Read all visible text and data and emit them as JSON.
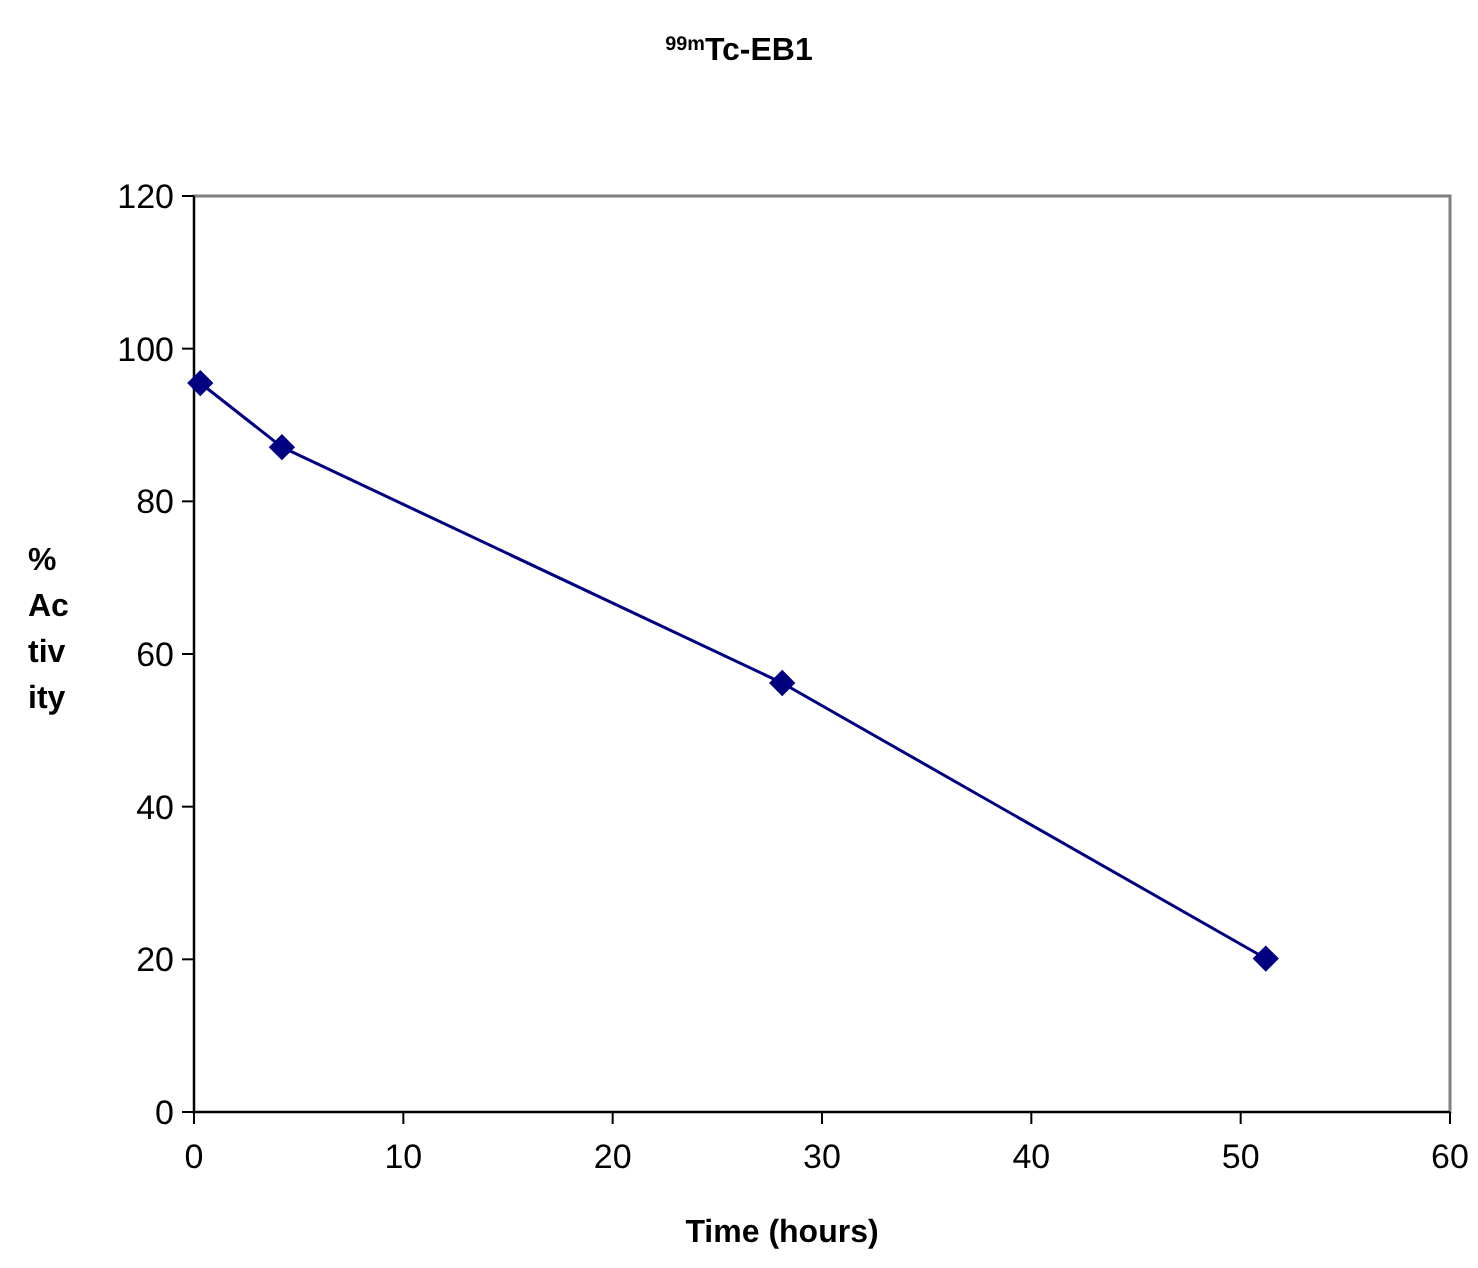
{
  "chart_data": {
    "type": "line",
    "title": "$^{99m}$Tc-EB1",
    "xlabel": "Time (hours)",
    "ylabel": "% Activity",
    "x": [
      0.3,
      4.2,
      28.1,
      51.2
    ],
    "series": [
      {
        "color": "#000080",
        "values": [
          95.5,
          87.1,
          56.2,
          20.1
        ]
      }
    ],
    "xlim": [
      0,
      60
    ],
    "xticks": [
      0,
      10,
      20,
      30,
      40,
      50,
      60
    ],
    "ylim": [
      0,
      120
    ],
    "yticks": [
      0,
      20,
      40,
      60,
      80,
      100,
      120
    ],
    "grid": false,
    "marker": "diamond",
    "line_style": "solid"
  }
}
